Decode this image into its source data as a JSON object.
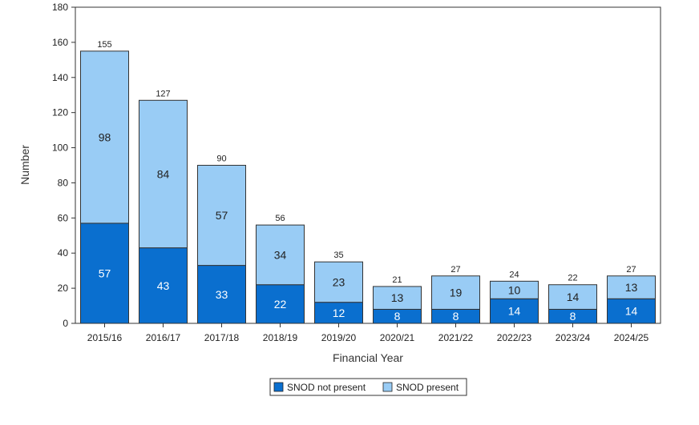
{
  "chart_data": {
    "type": "bar",
    "stacked": true,
    "categories": [
      "2015/16",
      "2016/17",
      "2017/18",
      "2018/19",
      "2019/20",
      "2020/21",
      "2021/22",
      "2022/23",
      "2023/24",
      "2024/25"
    ],
    "series": [
      {
        "name": "SNOD not present",
        "values": [
          57,
          43,
          33,
          22,
          12,
          8,
          8,
          14,
          8,
          14
        ],
        "color": "#0a6fcf",
        "label_color": "#ffffff"
      },
      {
        "name": "SNOD present",
        "values": [
          98,
          84,
          57,
          34,
          23,
          13,
          19,
          10,
          14,
          13
        ],
        "color": "#99ccf5",
        "label_color": "#222222"
      }
    ],
    "totals": [
      155,
      127,
      90,
      56,
      35,
      21,
      27,
      24,
      22,
      27
    ],
    "xlabel": "Financial Year",
    "ylabel": "Number",
    "ylim": [
      0,
      180
    ],
    "yticks": [
      0,
      20,
      40,
      60,
      80,
      100,
      120,
      140,
      160,
      180
    ],
    "grid": false,
    "legend_position": "bottom"
  }
}
